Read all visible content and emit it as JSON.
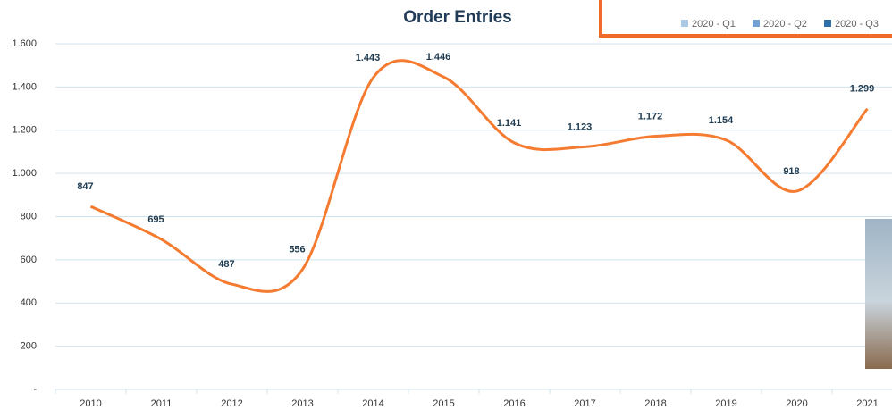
{
  "chart_data": {
    "type": "line",
    "title": "Order Entries",
    "categories": [
      "2010",
      "2011",
      "2012",
      "2013",
      "2014",
      "2015",
      "2016",
      "2017",
      "2018",
      "2019",
      "2020",
      "2021"
    ],
    "values": [
      847,
      695,
      487,
      556,
      1443,
      1446,
      1141,
      1123,
      1172,
      1154,
      918,
      1299
    ],
    "value_labels": [
      "847",
      "695",
      "487",
      "556",
      "1.443",
      "1.446",
      "1.141",
      "1.123",
      "1.172",
      "1.154",
      "918",
      "1.299"
    ],
    "color": "#f47b30",
    "ylim": [
      0,
      1600
    ],
    "yticks": [
      {
        "value": 0,
        "label": "-"
      },
      200,
      400,
      600,
      800,
      {
        "value": 1000,
        "label": "1.000"
      },
      {
        "value": 1200,
        "label": "1.200"
      },
      {
        "value": 1400,
        "label": "1.400"
      },
      {
        "value": 1600,
        "label": "1.600"
      }
    ],
    "grid": true
  },
  "overlay": {
    "legend": [
      {
        "name": "2020 - Q1",
        "color": "#a9c8e6"
      },
      {
        "name": "2020 - Q2",
        "color": "#6fa1d1"
      },
      {
        "name": "2020 - Q3",
        "color": "#2f6fa8"
      }
    ]
  }
}
